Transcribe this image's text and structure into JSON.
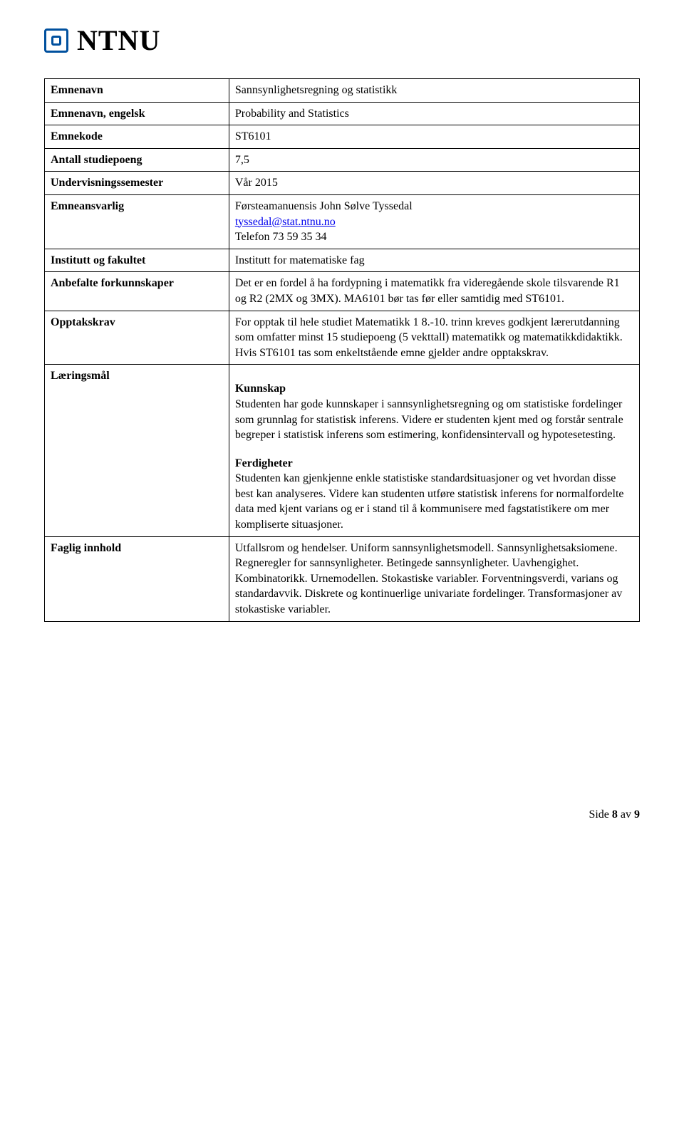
{
  "logo": {
    "text": "NTNU"
  },
  "rows": {
    "emnenavn": {
      "label": "Emnenavn",
      "value": "Sannsynlighetsregning og statistikk"
    },
    "emnenavn_eng": {
      "label": "Emnenavn, engelsk",
      "value": "Probability and Statistics"
    },
    "emnekode": {
      "label": "Emnekode",
      "value": "ST6101"
    },
    "studiepoeng": {
      "label": "Antall studiepoeng",
      "value": "7,5"
    },
    "semester": {
      "label": "Undervisningssemester",
      "value": "Vår 2015"
    },
    "ansvarlig": {
      "label": "Emneansvarlig",
      "line1": "Førsteamanuensis John Sølve Tyssedal",
      "email": "tyssedal@stat.ntnu.no",
      "email_href": "mailto:tyssedal@stat.ntnu.no",
      "line3": "Telefon 73 59 35 34"
    },
    "institutt": {
      "label": "Institutt og fakultet",
      "value": "Institutt for matematiske fag"
    },
    "forkunnskaper": {
      "label": "Anbefalte forkunnskaper",
      "value": "Det er en fordel å ha fordypning i matematikk fra videregående skole tilsvarende R1 og R2 (2MX og 3MX). MA6101 bør tas før eller samtidig med ST6101."
    },
    "opptak": {
      "label": "Opptakskrav",
      "value": "For opptak til hele studiet Matematikk 1 8.-10. trinn kreves godkjent lærerutdanning som omfatter minst 15 studiepoeng (5 vekttall) matematikk og matematikkdidaktikk. Hvis ST6101 tas som enkeltstående emne gjelder andre opptakskrav."
    },
    "laering": {
      "label": "Læringsmål",
      "kunnskap_head": "Kunnskap",
      "kunnskap": "Studenten har gode kunnskaper i sannsynlighetsregning og om statistiske fordelinger som grunnlag for statistisk inferens. Videre er studenten kjent med og forstår sentrale begreper i statistisk inferens som estimering, konfidensintervall og hypotesetesting.",
      "ferdigheter_head": "Ferdigheter",
      "ferdigheter": "Studenten kan gjenkjenne enkle statistiske standardsituasjoner og vet hvordan disse best kan analyseres. Videre kan studenten utføre statistisk inferens for normalfordelte data med kjent varians og er i stand til å kommunisere med fagstatistikere om mer kompliserte situasjoner."
    },
    "faglig": {
      "label": "Faglig innhold",
      "value": "Utfallsrom og hendelser. Uniform sannsynlighetsmodell. Sannsynlighetsaksiomene. Regneregler for sannsynligheter. Betingede sannsynligheter. Uavhengighet. Kombinatorikk. Urnemodellen. Stokastiske variabler. Forventningsverdi, varians og standardavvik. Diskrete og kontinuerlige univariate fordelinger. Transformasjoner av stokastiske variabler."
    }
  },
  "footer": {
    "side": "Side ",
    "page": "8",
    "av": " av ",
    "total": "9"
  }
}
